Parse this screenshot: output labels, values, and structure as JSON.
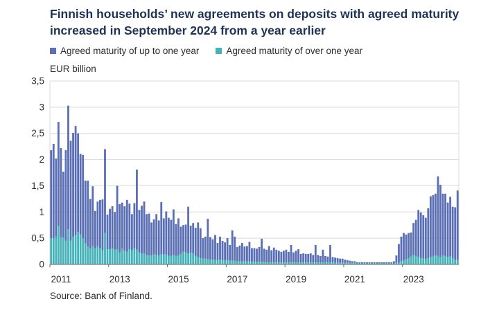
{
  "title_lines": [
    "Finnish households’ new agreements on deposits with agreed maturity",
    "increased in September 2024 from a year earlier"
  ],
  "unit": "EUR billion",
  "source": "Source: Bank of Finland.",
  "colors": {
    "short": "#5b6fb5",
    "long": "#44b3b8",
    "axis": "#666666",
    "grid": "#d9d9d9"
  },
  "chart_data": {
    "type": "bar",
    "stacked": true,
    "ylim": [
      0,
      3.5
    ],
    "y_ticks": [
      "0",
      "0,5",
      "1",
      "1,5",
      "2",
      "2,5",
      "3",
      "3,5"
    ],
    "x_ticks": [
      "2011",
      "2013",
      "2015",
      "2017",
      "2019",
      "2021",
      "2023"
    ],
    "start": "2011-01",
    "end": "2024-09",
    "series": [
      {
        "name": "Agreed maturity of up to one year",
        "values": [
          1.68,
          1.8,
          1.49,
          1.99,
          1.7,
          1.26,
          1.73,
          2.36,
          1.91,
          1.98,
          2.08,
          1.88,
          1.54,
          1.59,
          1.2,
          1.26,
          0.95,
          1.14,
          0.71,
          0.86,
          0.92,
          0.97,
          1.6,
          0.66,
          0.77,
          0.8,
          0.72,
          1.21,
          0.92,
          0.88,
          0.85,
          0.99,
          0.87,
          0.69,
          0.86,
          1.53,
          0.81,
          0.91,
          0.99,
          0.78,
          0.8,
          0.63,
          0.67,
          0.78,
          0.67,
          1.0,
          0.69,
          0.82,
          0.73,
          0.69,
          0.87,
          0.61,
          0.71,
          0.52,
          0.51,
          0.53,
          0.89,
          0.52,
          0.58,
          0.54,
          0.66,
          0.57,
          0.39,
          0.42,
          0.77,
          0.43,
          0.39,
          0.47,
          0.33,
          0.44,
          0.37,
          0.34,
          0.42,
          0.3,
          0.58,
          0.46,
          0.27,
          0.3,
          0.35,
          0.28,
          0.29,
          0.37,
          0.26,
          0.26,
          0.25,
          0.28,
          0.44,
          0.25,
          0.24,
          0.31,
          0.23,
          0.28,
          0.24,
          0.22,
          0.2,
          0.22,
          0.24,
          0.2,
          0.32,
          0.19,
          0.22,
          0.25,
          0.16,
          0.17,
          0.16,
          0.16,
          0.17,
          0.14,
          0.33,
          0.14,
          0.12,
          0.24,
          0.12,
          0.11,
          0.33,
          0.1,
          0.09,
          0.09,
          0.08,
          0.08,
          0.06,
          0.05,
          0.04,
          0.03,
          0.03,
          0.02,
          0.02,
          0.02,
          0.02,
          0.02,
          0.02,
          0.02,
          0.02,
          0.02,
          0.02,
          0.02,
          0.02,
          0.02,
          0.02,
          0.02,
          0.04,
          0.14,
          0.35,
          0.47,
          0.52,
          0.47,
          0.48,
          0.46,
          0.61,
          0.69,
          0.9,
          0.87,
          0.83,
          0.79,
          0.95,
          1.16,
          1.17,
          1.18,
          1.52,
          1.38,
          1.18,
          1.19,
          1.04,
          1.14,
          0.98,
          1.0,
          1.32
        ],
        "color_key": "short"
      },
      {
        "name": "Agreed maturity of over one year",
        "values": [
          0.5,
          0.5,
          0.53,
          0.73,
          0.52,
          0.51,
          0.45,
          0.67,
          0.45,
          0.53,
          0.56,
          0.62,
          0.57,
          0.5,
          0.4,
          0.34,
          0.3,
          0.35,
          0.31,
          0.34,
          0.31,
          0.27,
          0.6,
          0.29,
          0.29,
          0.31,
          0.28,
          0.29,
          0.23,
          0.3,
          0.26,
          0.24,
          0.29,
          0.27,
          0.31,
          0.28,
          0.23,
          0.21,
          0.21,
          0.18,
          0.17,
          0.17,
          0.19,
          0.18,
          0.17,
          0.19,
          0.19,
          0.19,
          0.16,
          0.16,
          0.18,
          0.16,
          0.17,
          0.2,
          0.24,
          0.23,
          0.21,
          0.22,
          0.21,
          0.16,
          0.14,
          0.12,
          0.11,
          0.11,
          0.1,
          0.09,
          0.09,
          0.09,
          0.08,
          0.09,
          0.08,
          0.08,
          0.08,
          0.07,
          0.07,
          0.07,
          0.06,
          0.06,
          0.06,
          0.06,
          0.06,
          0.06,
          0.05,
          0.05,
          0.05,
          0.05,
          0.05,
          0.05,
          0.04,
          0.04,
          0.04,
          0.04,
          0.04,
          0.04,
          0.04,
          0.04,
          0.04,
          0.04,
          0.05,
          0.04,
          0.04,
          0.04,
          0.04,
          0.04,
          0.04,
          0.04,
          0.04,
          0.04,
          0.04,
          0.04,
          0.04,
          0.04,
          0.04,
          0.04,
          0.04,
          0.04,
          0.04,
          0.03,
          0.03,
          0.03,
          0.03,
          0.03,
          0.03,
          0.03,
          0.03,
          0.02,
          0.02,
          0.02,
          0.02,
          0.02,
          0.02,
          0.02,
          0.02,
          0.02,
          0.02,
          0.02,
          0.02,
          0.02,
          0.02,
          0.02,
          0.02,
          0.03,
          0.04,
          0.06,
          0.08,
          0.1,
          0.12,
          0.15,
          0.18,
          0.16,
          0.14,
          0.12,
          0.11,
          0.1,
          0.12,
          0.14,
          0.15,
          0.17,
          0.16,
          0.14,
          0.17,
          0.16,
          0.14,
          0.15,
          0.12,
          0.09,
          0.09
        ],
        "color_key": "long"
      }
    ],
    "grid": "horizontal",
    "legend_position": "top-left"
  }
}
